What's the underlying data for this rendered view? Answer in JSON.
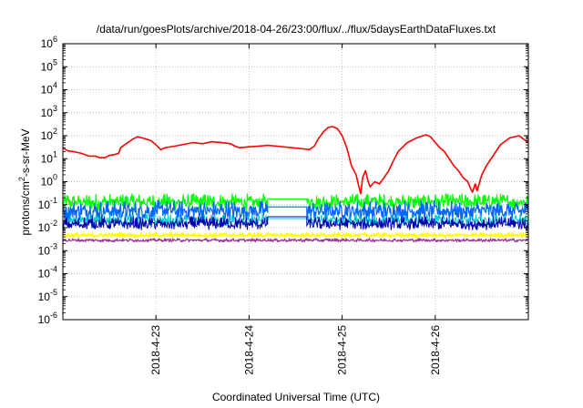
{
  "chart_data": {
    "type": "line",
    "title": "/data/run/goesPlots/archive/2018-04-26/23:00/flux/../flux/5daysEarthDataFluxes.txt",
    "xlabel": "Coordinated Universal Time (UTC)",
    "ylabel": {
      "pre": "protons/cm",
      "sup": "2",
      "post": "-s-sr-MeV"
    },
    "yscale": "log",
    "ylim_exp": [
      -6,
      6
    ],
    "x_unit": "days from 2018-04-22 00:00 UTC",
    "xlim": [
      0.0,
      5.0
    ],
    "grid": true,
    "legend": "none",
    "xticks": [
      {
        "pos": 1.0,
        "label": "2018-4-23"
      },
      {
        "pos": 2.0,
        "label": "2018-4-24"
      },
      {
        "pos": 3.0,
        "label": "2018-4-25"
      },
      {
        "pos": 4.0,
        "label": "2018-4-26"
      }
    ],
    "yticks": [
      {
        "exp": -6,
        "base": "10",
        "sup": "-6"
      },
      {
        "exp": -5,
        "base": "10",
        "sup": "-5"
      },
      {
        "exp": -4,
        "base": "10",
        "sup": "-4"
      },
      {
        "exp": -3,
        "base": "10",
        "sup": "-3"
      },
      {
        "exp": -2,
        "base": "10",
        "sup": "-2"
      },
      {
        "exp": -1,
        "base": "10",
        "sup": "-1"
      },
      {
        "exp": 0,
        "base": "10",
        "sup": "0"
      },
      {
        "exp": 1,
        "base": "10",
        "sup": "1"
      },
      {
        "exp": 2,
        "base": "10",
        "sup": "2"
      },
      {
        "exp": 3,
        "base": "10",
        "sup": "3"
      },
      {
        "exp": 4,
        "base": "10",
        "sup": "4"
      },
      {
        "exp": 5,
        "base": "10",
        "sup": "5"
      },
      {
        "exp": 6,
        "base": "10",
        "sup": "6"
      }
    ],
    "series": [
      {
        "color": "#ff0000",
        "width": 1.6,
        "points": [
          [
            0.0,
            30
          ],
          [
            0.05,
            22
          ],
          [
            0.12,
            20
          ],
          [
            0.2,
            17
          ],
          [
            0.28,
            13
          ],
          [
            0.35,
            13
          ],
          [
            0.4,
            11
          ],
          [
            0.45,
            11
          ],
          [
            0.5,
            14
          ],
          [
            0.55,
            15
          ],
          [
            0.6,
            17
          ],
          [
            0.62,
            30
          ],
          [
            0.68,
            45
          ],
          [
            0.75,
            70
          ],
          [
            0.8,
            90
          ],
          [
            0.85,
            80
          ],
          [
            0.9,
            70
          ],
          [
            0.95,
            60
          ],
          [
            1.0,
            40
          ],
          [
            1.05,
            25
          ],
          [
            1.1,
            30
          ],
          [
            1.2,
            35
          ],
          [
            1.3,
            42
          ],
          [
            1.4,
            50
          ],
          [
            1.5,
            45
          ],
          [
            1.6,
            55
          ],
          [
            1.7,
            50
          ],
          [
            1.8,
            45
          ],
          [
            1.85,
            35
          ],
          [
            1.9,
            30
          ],
          [
            2.0,
            33
          ],
          [
            2.1,
            35
          ],
          [
            2.2,
            38
          ],
          [
            2.3,
            35
          ],
          [
            2.65,
            25
          ],
          [
            2.7,
            35
          ],
          [
            2.75,
            80
          ],
          [
            2.8,
            150
          ],
          [
            2.85,
            230
          ],
          [
            2.9,
            250
          ],
          [
            2.95,
            200
          ],
          [
            3.0,
            100
          ],
          [
            3.05,
            30
          ],
          [
            3.1,
            5
          ],
          [
            3.15,
            2
          ],
          [
            3.18,
            0.6
          ],
          [
            3.2,
            0.3
          ],
          [
            3.22,
            1.5
          ],
          [
            3.25,
            3
          ],
          [
            3.28,
            1
          ],
          [
            3.3,
            0.6
          ],
          [
            3.35,
            1
          ],
          [
            3.4,
            0.8
          ],
          [
            3.45,
            1.5
          ],
          [
            3.5,
            3
          ],
          [
            3.55,
            8
          ],
          [
            3.6,
            20
          ],
          [
            3.7,
            50
          ],
          [
            3.8,
            80
          ],
          [
            3.9,
            110
          ],
          [
            3.95,
            90
          ],
          [
            4.0,
            50
          ],
          [
            4.05,
            30
          ],
          [
            4.1,
            20
          ],
          [
            4.15,
            10
          ],
          [
            4.2,
            5
          ],
          [
            4.25,
            3
          ],
          [
            4.3,
            1.5
          ],
          [
            4.35,
            1
          ],
          [
            4.38,
            0.5
          ],
          [
            4.4,
            0.35
          ],
          [
            4.43,
            0.8
          ],
          [
            4.45,
            0.4
          ],
          [
            4.5,
            2
          ],
          [
            4.55,
            5
          ],
          [
            4.6,
            10
          ],
          [
            4.7,
            40
          ],
          [
            4.8,
            80
          ],
          [
            4.9,
            100
          ],
          [
            4.95,
            70
          ],
          [
            5.0,
            50
          ]
        ]
      },
      {
        "color": "#00ff00",
        "width": 1.2,
        "noisy": true,
        "spans": [
          [
            0.0,
            2.2,
            0.12
          ],
          [
            2.2,
            2.62,
            0.18
          ],
          [
            2.62,
            5.0,
            0.13
          ]
        ],
        "noise": [
          0.06,
          0.3
        ]
      },
      {
        "color": "#0066ff",
        "width": 1.2,
        "noisy": true,
        "spans": [
          [
            0.0,
            2.2,
            0.05
          ],
          [
            2.2,
            2.62,
            0.08
          ],
          [
            2.62,
            5.0,
            0.05
          ]
        ],
        "noise": [
          0.02,
          0.15
        ]
      },
      {
        "color": "#00cccc",
        "width": 1.0,
        "noisy": true,
        "spans": [
          [
            0.0,
            2.2,
            0.02
          ],
          [
            2.2,
            2.62,
            0.025
          ],
          [
            2.62,
            5.0,
            0.02
          ]
        ],
        "noise": [
          0.012,
          0.04
        ]
      },
      {
        "color": "#0000aa",
        "width": 1.0,
        "noisy": true,
        "spans": [
          [
            0.0,
            2.2,
            0.012
          ],
          [
            2.2,
            2.62,
            0.03
          ],
          [
            2.62,
            5.0,
            0.012
          ]
        ],
        "noise": [
          0.008,
          0.03
        ]
      },
      {
        "color": "#ffff00",
        "width": 1.4,
        "noisy": true,
        "spans": [
          [
            0.0,
            5.0,
            0.0045
          ]
        ],
        "noise": [
          0.0038,
          0.006
        ]
      },
      {
        "color": "#993399",
        "width": 1.2,
        "noisy": true,
        "spans": [
          [
            0.0,
            5.0,
            0.0028
          ]
        ],
        "noise": [
          0.0024,
          0.0034
        ]
      }
    ]
  }
}
